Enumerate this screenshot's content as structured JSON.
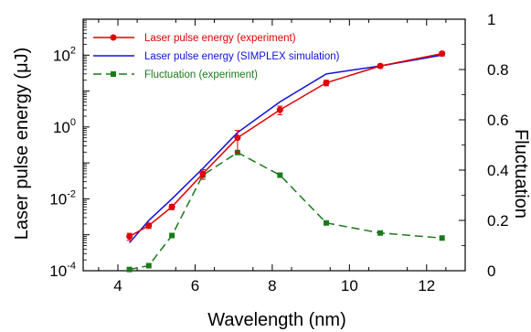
{
  "chart_data": {
    "type": "line",
    "xlabel": "Wavelength (nm)",
    "ylabel_left": "Laser pulse energy (μJ)",
    "ylabel_right": "Fluctuation",
    "xlim": [
      3.1,
      13.0
    ],
    "ylim_left_log10": [
      -4,
      3
    ],
    "ylim_right": [
      0,
      1
    ],
    "y_scale_left": "log",
    "x_ticks": [
      "4",
      "6",
      "8",
      "10",
      "12"
    ],
    "x_tick_values": [
      4,
      6,
      8,
      10,
      12
    ],
    "y_left_ticks": [
      {
        "base": "10",
        "exp": "-4",
        "value": 0.0001
      },
      {
        "base": "10",
        "exp": "-2",
        "value": 0.01
      },
      {
        "base": "10",
        "exp": "0",
        "value": 1
      },
      {
        "base": "10",
        "exp": "2",
        "value": 100
      }
    ],
    "y_right_ticks": [
      "0",
      "0.2",
      "0.4",
      "0.6",
      "0.8",
      "1"
    ],
    "y_right_tick_values": [
      0,
      0.2,
      0.4,
      0.6,
      0.8,
      1
    ],
    "legend_position": "top-left",
    "series": [
      {
        "name": "Laser pulse energy (experiment)",
        "axis": "left",
        "color": "#e00000",
        "marker": "circle",
        "line": "solid",
        "x": [
          4.3,
          4.8,
          5.4,
          6.2,
          7.1,
          8.2,
          9.4,
          10.8,
          12.4
        ],
        "y": [
          0.0009,
          0.0018,
          0.006,
          0.05,
          0.5,
          3.0,
          17,
          50,
          110
        ],
        "error": [
          0.0002,
          0.0003,
          0.001,
          0.015,
          0.3,
          0.8,
          3,
          6,
          15
        ]
      },
      {
        "name": "Laser pulse energy (SIMPLEX simulation)",
        "axis": "left",
        "color": "#1010dd",
        "marker": "none",
        "line": "solid",
        "x": [
          4.3,
          4.8,
          5.4,
          6.2,
          7.1,
          8.2,
          9.4,
          10.8,
          12.4
        ],
        "y": [
          0.0006,
          0.0025,
          0.01,
          0.07,
          0.7,
          5.0,
          30,
          50,
          100
        ]
      },
      {
        "name": "Fluctuation (experiment)",
        "axis": "right",
        "color": "#1a7a1a",
        "marker": "square",
        "line": "dashed",
        "x": [
          4.3,
          4.8,
          5.4,
          6.2,
          7.1,
          8.2,
          9.4,
          10.8,
          12.4
        ],
        "y": [
          0.005,
          0.02,
          0.14,
          0.38,
          0.47,
          0.38,
          0.19,
          0.15,
          0.13
        ]
      }
    ]
  }
}
